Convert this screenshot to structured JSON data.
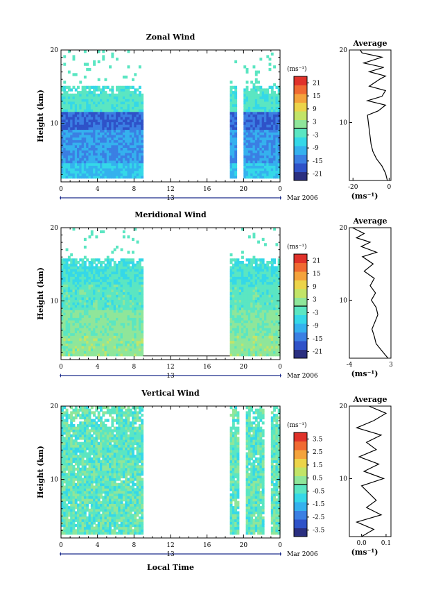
{
  "chart_data": [
    {
      "type": "heatmap",
      "title": "Zonal Wind",
      "ylabel": "Height (km)",
      "xlabel": "",
      "x_ticks": [
        "0",
        "4",
        "8",
        "12",
        "16",
        "20",
        "0"
      ],
      "y_ticks": [
        "20",
        "10"
      ],
      "ylim": [
        2,
        20
      ],
      "xlim": [
        0,
        24
      ],
      "date_ticks": [
        "13"
      ],
      "date_right": "Mar 2006",
      "colorbar": {
        "unit": "(ms⁻¹)",
        "ticks": [
          "21",
          "15",
          "9",
          "3",
          "-3",
          "-9",
          "-15",
          "-21"
        ],
        "range": [
          -24,
          24
        ]
      },
      "data_gap": [
        9,
        18.5
      ],
      "layers": [
        {
          "height": [
            2.5,
            4.5
          ],
          "value": -8
        },
        {
          "height": [
            4.5,
            9
          ],
          "value": -12
        },
        {
          "height": [
            9,
            11.5
          ],
          "value": -16
        },
        {
          "height": [
            11.5,
            15
          ],
          "value": -3
        }
      ],
      "average": {
        "title": "Average",
        "xlabel": "(ms⁻¹)",
        "x_ticks": [
          "-20",
          "0"
        ],
        "y_ticks": [
          "20",
          "10"
        ],
        "xlim": [
          -22,
          1
        ],
        "profile": {
          "height": [
            2,
            3,
            4,
            5,
            6,
            7,
            8,
            9,
            10,
            11,
            11.6,
            12.4,
            13,
            13.6,
            14.4,
            15,
            16,
            16.4,
            17,
            17.6,
            18.2,
            19,
            19.6,
            20
          ],
          "value": [
            -1,
            -2,
            -4,
            -7,
            -9,
            -10,
            -10.5,
            -11,
            -11.5,
            -12,
            -6,
            -2,
            -12,
            -4,
            -2,
            -11,
            -5,
            -2,
            -11,
            -3,
            -14,
            -4,
            -15,
            -16
          ]
        }
      }
    },
    {
      "type": "heatmap",
      "title": "Meridional Wind",
      "ylabel": "Height (km)",
      "xlabel": "",
      "x_ticks": [
        "0",
        "4",
        "8",
        "12",
        "16",
        "20",
        "0"
      ],
      "y_ticks": [
        "20",
        "10"
      ],
      "ylim": [
        2,
        20
      ],
      "xlim": [
        0,
        24
      ],
      "date_ticks": [
        "13"
      ],
      "date_right": "Mar 2006",
      "colorbar": {
        "unit": "(ms⁻¹)",
        "ticks": [
          "21",
          "15",
          "9",
          "3",
          "-3",
          "-9",
          "-15",
          "-21"
        ],
        "range": [
          -24,
          24
        ]
      },
      "data_gap": [
        9,
        18.5
      ],
      "layers": [
        {
          "height": [
            2.5,
            5
          ],
          "value": 2
        },
        {
          "height": [
            5,
            8.5
          ],
          "value": 1
        },
        {
          "height": [
            8.5,
            12
          ],
          "value": -2
        },
        {
          "height": [
            12,
            15.5
          ],
          "value": -4
        }
      ],
      "average": {
        "title": "Average",
        "xlabel": "(ms⁻¹)",
        "x_ticks": [
          "-4",
          "3"
        ],
        "y_ticks": [
          "20",
          "10"
        ],
        "xlim": [
          -4,
          3
        ],
        "profile": {
          "height": [
            2,
            3,
            4,
            5,
            6,
            7,
            8,
            9,
            10,
            11,
            12,
            13,
            14,
            15,
            16,
            16.6,
            17.4,
            18,
            18.6,
            19.2,
            20
          ],
          "value": [
            2.5,
            1.5,
            0.5,
            0.2,
            -0.2,
            0.3,
            0.8,
            0.5,
            -0.3,
            0.4,
            -0.5,
            0.2,
            -1.5,
            0,
            -1.8,
            0.6,
            -2,
            -0.5,
            -2.8,
            -1.5,
            -3.5
          ]
        }
      }
    },
    {
      "type": "heatmap",
      "title": "Vertical Wind",
      "ylabel": "Height (km)",
      "xlabel": "Local Time",
      "x_ticks": [
        "0",
        "4",
        "8",
        "12",
        "16",
        "20",
        "0"
      ],
      "y_ticks": [
        "20",
        "10"
      ],
      "ylim": [
        2,
        20
      ],
      "xlim": [
        0,
        24
      ],
      "date_ticks": [
        "13"
      ],
      "date_right": "Mar 2006",
      "colorbar": {
        "unit": "(ms⁻¹)",
        "ticks": [
          "3.5",
          "2.5",
          "1.5",
          "0.5",
          "-0.5",
          "-1.5",
          "-2.5",
          "-3.5"
        ],
        "range": [
          -4,
          4
        ]
      },
      "data_gap": [
        9,
        18.5
      ],
      "layers": [
        {
          "height": [
            2.5,
            20
          ],
          "value": -0.3
        }
      ],
      "average": {
        "title": "Average",
        "xlabel": "(ms⁻¹)",
        "x_ticks": [
          "0.0",
          "0.1"
        ],
        "y_ticks": [
          "20",
          "10"
        ],
        "xlim": [
          -0.05,
          0.12
        ],
        "profile": {
          "height": [
            2,
            3,
            4,
            5,
            6,
            7,
            8,
            9,
            10,
            11,
            12,
            13,
            14,
            15,
            16,
            17,
            18,
            19,
            20
          ],
          "value": [
            0.0,
            0.05,
            -0.02,
            0.08,
            0.02,
            0.06,
            0.03,
            0.0,
            0.09,
            0.01,
            0.07,
            -0.01,
            0.06,
            0.02,
            0.08,
            -0.02,
            0.05,
            0.1,
            0.03
          ]
        }
      }
    }
  ]
}
